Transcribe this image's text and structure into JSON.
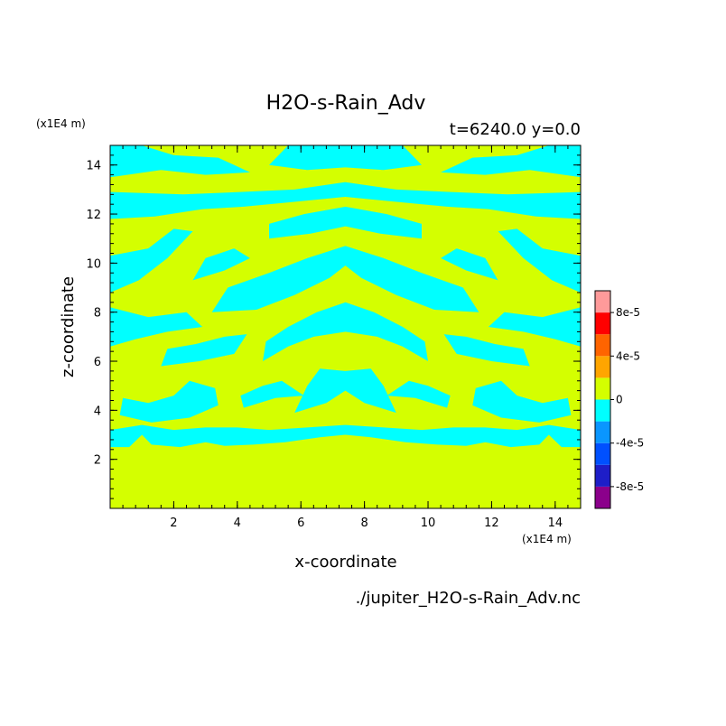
{
  "chart_data": {
    "type": "heatmap",
    "title": "H2O-s-Rain_Adv",
    "subtitle": "t=6240.0 y=0.0",
    "xlabel": "x-coordinate",
    "ylabel": "z-coordinate",
    "x_unit": "(x1E4 m)",
    "z_unit": "(x1E4 m)",
    "source_file": "./jupiter_H2O-s-Rain_Adv.nc",
    "xlim": [
      0,
      14.8
    ],
    "zlim": [
      0,
      14.8
    ],
    "x_ticks": [
      2,
      4,
      6,
      8,
      10,
      12,
      14
    ],
    "z_ticks": [
      2,
      4,
      6,
      8,
      10,
      12,
      14
    ],
    "colorbar": {
      "levels": [
        -0.0001,
        -8e-05,
        -6e-05,
        -4e-05,
        -2e-05,
        0,
        2e-05,
        4e-05,
        6e-05,
        8e-05,
        0.0001
      ],
      "colors": [
        "#8b008b",
        "#1e1ec8",
        "#0050ff",
        "#0a96ff",
        "#00ffff",
        "#d4ff00",
        "#ffa500",
        "#ff6400",
        "#ff0000",
        "#ff9a9a"
      ],
      "labels": [
        "8e-5",
        "4e-5",
        "0",
        "-4e-5",
        "-8e-5"
      ],
      "label_values": [
        8e-05,
        4e-05,
        0,
        -4e-05,
        -8e-05
      ]
    },
    "field_summary": "Field is mostly in the [0, 2e-5) band (yellow-green) with banded, left-right mirror-symmetric patches in the [-2e-5, 0) band (cyan) between z = 2.5 and z = 14.8; below z = 2.5 uniform.",
    "cyan_patches": [
      [
        [
          0.0,
          2.5
        ],
        [
          0.6,
          2.5
        ],
        [
          1.0,
          3.0
        ],
        [
          1.3,
          2.6
        ],
        [
          2.2,
          2.5
        ],
        [
          3.0,
          2.7
        ],
        [
          3.6,
          2.55
        ],
        [
          4.5,
          2.6
        ],
        [
          5.5,
          2.7
        ],
        [
          6.6,
          2.9
        ],
        [
          7.4,
          3.0
        ],
        [
          7.4,
          3.4
        ],
        [
          6.2,
          3.3
        ],
        [
          5.0,
          3.2
        ],
        [
          4.0,
          3.3
        ],
        [
          3.0,
          3.3
        ],
        [
          2.0,
          3.2
        ],
        [
          1.0,
          3.4
        ],
        [
          0.0,
          3.2
        ]
      ],
      [
        [
          0.3,
          3.8
        ],
        [
          1.3,
          3.5
        ],
        [
          2.5,
          3.7
        ],
        [
          3.4,
          4.2
        ],
        [
          3.3,
          4.9
        ],
        [
          2.5,
          5.2
        ],
        [
          2.0,
          4.6
        ],
        [
          1.2,
          4.3
        ],
        [
          0.4,
          4.5
        ]
      ],
      [
        [
          4.2,
          4.1
        ],
        [
          5.2,
          4.5
        ],
        [
          6.1,
          4.6
        ],
        [
          5.4,
          5.2
        ],
        [
          4.8,
          5.0
        ],
        [
          4.1,
          4.6
        ]
      ],
      [
        [
          5.8,
          3.9
        ],
        [
          6.8,
          4.3
        ],
        [
          7.4,
          4.8
        ],
        [
          7.4,
          5.6
        ],
        [
          6.6,
          5.7
        ],
        [
          6.2,
          5.0
        ]
      ],
      [
        [
          0.0,
          6.6
        ],
        [
          0.8,
          6.9
        ],
        [
          1.8,
          7.2
        ],
        [
          2.9,
          7.4
        ],
        [
          2.4,
          8.0
        ],
        [
          1.2,
          7.8
        ],
        [
          0.0,
          8.2
        ]
      ],
      [
        [
          1.6,
          5.8
        ],
        [
          2.8,
          6.0
        ],
        [
          3.9,
          6.3
        ],
        [
          4.3,
          7.1
        ],
        [
          3.6,
          7.0
        ],
        [
          2.7,
          6.7
        ],
        [
          1.8,
          6.5
        ]
      ],
      [
        [
          4.8,
          6.0
        ],
        [
          5.6,
          6.6
        ],
        [
          6.4,
          7.0
        ],
        [
          7.4,
          7.2
        ],
        [
          7.4,
          8.4
        ],
        [
          6.5,
          8.0
        ],
        [
          5.6,
          7.4
        ],
        [
          4.9,
          6.8
        ]
      ],
      [
        [
          3.2,
          8.0
        ],
        [
          4.6,
          8.1
        ],
        [
          5.8,
          8.7
        ],
        [
          6.9,
          9.4
        ],
        [
          7.4,
          9.9
        ],
        [
          7.4,
          10.7
        ],
        [
          6.2,
          10.2
        ],
        [
          5.0,
          9.6
        ],
        [
          3.7,
          9.0
        ]
      ],
      [
        [
          0.0,
          8.8
        ],
        [
          0.9,
          9.3
        ],
        [
          1.8,
          10.2
        ],
        [
          2.6,
          11.3
        ],
        [
          2.0,
          11.4
        ],
        [
          1.2,
          10.6
        ],
        [
          0.0,
          10.3
        ]
      ],
      [
        [
          2.6,
          9.3
        ],
        [
          3.6,
          9.7
        ],
        [
          4.4,
          10.2
        ],
        [
          3.9,
          10.6
        ],
        [
          3.0,
          10.2
        ]
      ],
      [
        [
          5.0,
          11.0
        ],
        [
          6.3,
          11.2
        ],
        [
          7.4,
          11.5
        ],
        [
          7.4,
          12.3
        ],
        [
          6.1,
          12.0
        ],
        [
          5.0,
          11.6
        ]
      ],
      [
        [
          0.0,
          11.8
        ],
        [
          1.4,
          11.9
        ],
        [
          2.9,
          12.2
        ],
        [
          4.2,
          12.3
        ],
        [
          5.8,
          12.5
        ],
        [
          7.4,
          12.7
        ],
        [
          7.4,
          13.3
        ],
        [
          5.8,
          13.0
        ],
        [
          4.1,
          12.9
        ],
        [
          2.3,
          12.8
        ],
        [
          0.0,
          12.9
        ]
      ],
      [
        [
          0.0,
          13.5
        ],
        [
          1.6,
          13.8
        ],
        [
          3.0,
          13.6
        ],
        [
          4.4,
          13.7
        ],
        [
          3.4,
          14.3
        ],
        [
          2.0,
          14.4
        ],
        [
          1.0,
          14.8
        ],
        [
          0.0,
          14.8
        ]
      ],
      [
        [
          5.0,
          14.0
        ],
        [
          6.2,
          13.8
        ],
        [
          7.4,
          13.9
        ],
        [
          7.4,
          14.8
        ],
        [
          5.6,
          14.8
        ]
      ]
    ]
  }
}
